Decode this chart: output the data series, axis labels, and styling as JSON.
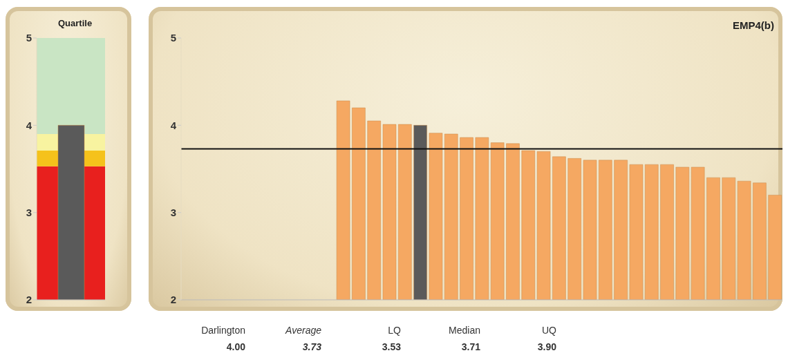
{
  "chart_data": [
    {
      "type": "bar",
      "title": "Quartile",
      "categories": [
        null
      ],
      "values": [
        4.0
      ],
      "color": "#5a5a5a",
      "ylim": [
        2,
        5
      ],
      "yticks": [
        2,
        3,
        4,
        5
      ],
      "grid": false,
      "bands": [
        {
          "axis": "y",
          "from": 2,
          "to": 3.53,
          "color": "#e8201e"
        },
        {
          "axis": "y",
          "from": 3.53,
          "to": 3.71,
          "color": "#f5c21b"
        },
        {
          "axis": "y",
          "from": 3.71,
          "to": 3.9,
          "color": "#f8f3a0"
        },
        {
          "axis": "y",
          "from": 3.9,
          "to": 5,
          "color": "#c9e5c4"
        }
      ]
    },
    {
      "type": "bar",
      "title": "EMP4(b)",
      "categories": [
        null,
        null,
        null,
        null,
        null,
        null,
        null,
        null,
        null,
        null,
        null,
        null,
        null,
        null,
        null,
        null,
        null,
        null,
        null,
        null,
        null,
        null,
        null,
        null,
        null,
        null,
        null,
        null,
        null,
        null,
        null,
        null,
        null,
        null,
        null,
        null,
        null,
        null,
        null
      ],
      "values": [
        null,
        null,
        null,
        null,
        null,
        null,
        null,
        null,
        null,
        null,
        4.28,
        4.2,
        4.05,
        4.01,
        4.01,
        4.0,
        3.91,
        3.9,
        3.86,
        3.86,
        3.8,
        3.79,
        3.71,
        3.7,
        3.64,
        3.62,
        3.6,
        3.6,
        3.6,
        3.55,
        3.55,
        3.55,
        3.52,
        3.52,
        3.4,
        3.4,
        3.36,
        3.34,
        3.2
      ],
      "colors": [
        "#f5a862",
        "#f5a862",
        "#f5a862",
        "#f5a862",
        "#f5a862",
        "#f5a862",
        "#f5a862",
        "#f5a862",
        "#f5a862",
        "#f5a862",
        "#f5a862",
        "#f5a862",
        "#f5a862",
        "#f5a862",
        "#f5a862",
        "#5a5a5a",
        "#f5a862",
        "#f5a862",
        "#f5a862",
        "#f5a862",
        "#f5a862",
        "#f5a862",
        "#f5a862",
        "#f5a862",
        "#f5a862",
        "#f5a862",
        "#f5a862",
        "#f5a862",
        "#f5a862",
        "#f5a862",
        "#f5a862",
        "#f5a862",
        "#f5a862",
        "#f5a862",
        "#f5a862",
        "#f5a862",
        "#f5a862",
        "#f5a862",
        "#f5a862"
      ],
      "ylim": [
        2,
        5
      ],
      "yticks": [
        2,
        3,
        4,
        5
      ],
      "grid": false,
      "ref_lines": [
        {
          "axis": "y",
          "value": 3.73,
          "color": "#111111"
        }
      ],
      "annotations": [
        "Darlington",
        "Average",
        "LQ",
        "Median",
        "UQ",
        "4.00",
        "3.73",
        "3.53",
        "3.71",
        "3.90"
      ]
    }
  ]
}
